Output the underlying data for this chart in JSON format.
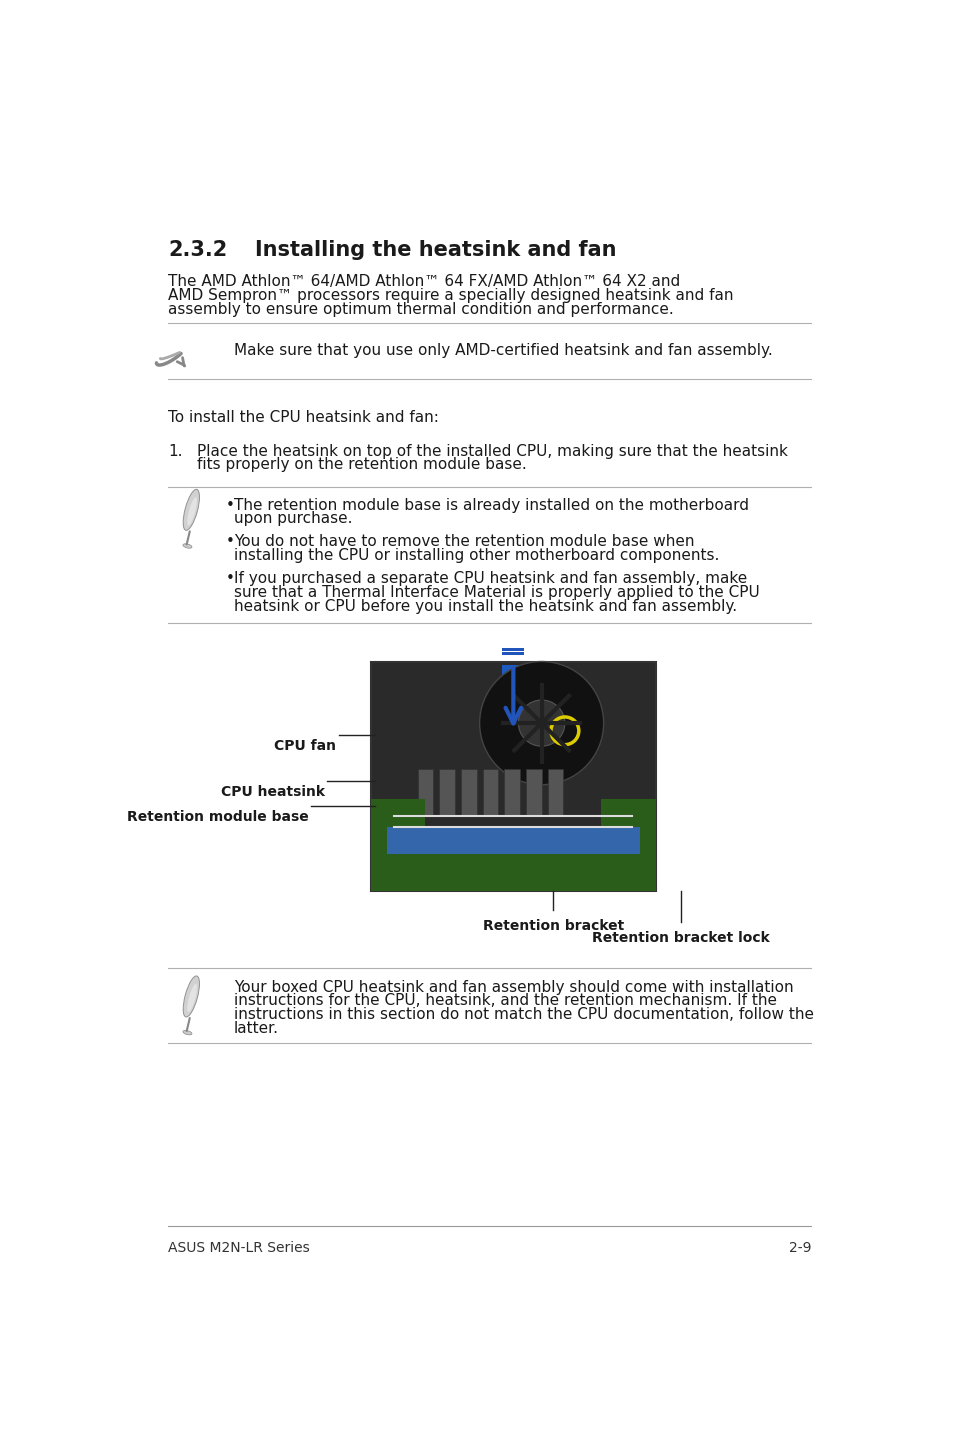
{
  "title_num": "2.3.2",
  "title_text": "Installing the heatsink and fan",
  "body_text_line1": "The AMD Athlon™ 64/AMD Athlon™ 64 FX/AMD Athlon™ 64 X2 and",
  "body_text_line2": "AMD Sempron™ processors require a specially designed heatsink and fan",
  "body_text_line3": "assembly to ensure optimum thermal condition and performance.",
  "note1_text": "Make sure that you use only AMD-certified heatsink and fan assembly.",
  "to_install_text": "To install the CPU heatsink and fan:",
  "step1_num": "1.",
  "step1_line1": "Place the heatsink on top of the installed CPU, making sure that the heatsink",
  "step1_line2": "fits properly on the retention module base.",
  "bullet1_line1": "The retention module base is already installed on the motherboard",
  "bullet1_line2": "upon purchase.",
  "bullet2_line1": "You do not have to remove the retention module base when",
  "bullet2_line2": "installing the CPU or installing other motherboard components.",
  "bullet3_line1": "If you purchased a separate CPU heatsink and fan assembly, make",
  "bullet3_line2": "sure that a Thermal Interface Material is properly applied to the CPU",
  "bullet3_line3": "heatsink or CPU before you install the heatsink and fan assembly.",
  "label_cpu_fan": "CPU fan",
  "label_cpu_heatsink": "CPU heatsink",
  "label_retention_module_base": "Retention module base",
  "label_retention_bracket": "Retention bracket",
  "label_retention_bracket_lock": "Retention bracket lock",
  "note2_line1": "Your boxed CPU heatsink and fan assembly should come with installation",
  "note2_line2": "instructions for the CPU, heatsink, and the retention mechanism. If the",
  "note2_line3": "instructions in this section do not match the CPU documentation, follow the",
  "note2_line4": "latter.",
  "footer_left": "ASUS M2N-LR Series",
  "footer_right": "2-9",
  "bg_color": "#ffffff",
  "text_color": "#1a1a1a",
  "line_color": "#b0b0b0"
}
